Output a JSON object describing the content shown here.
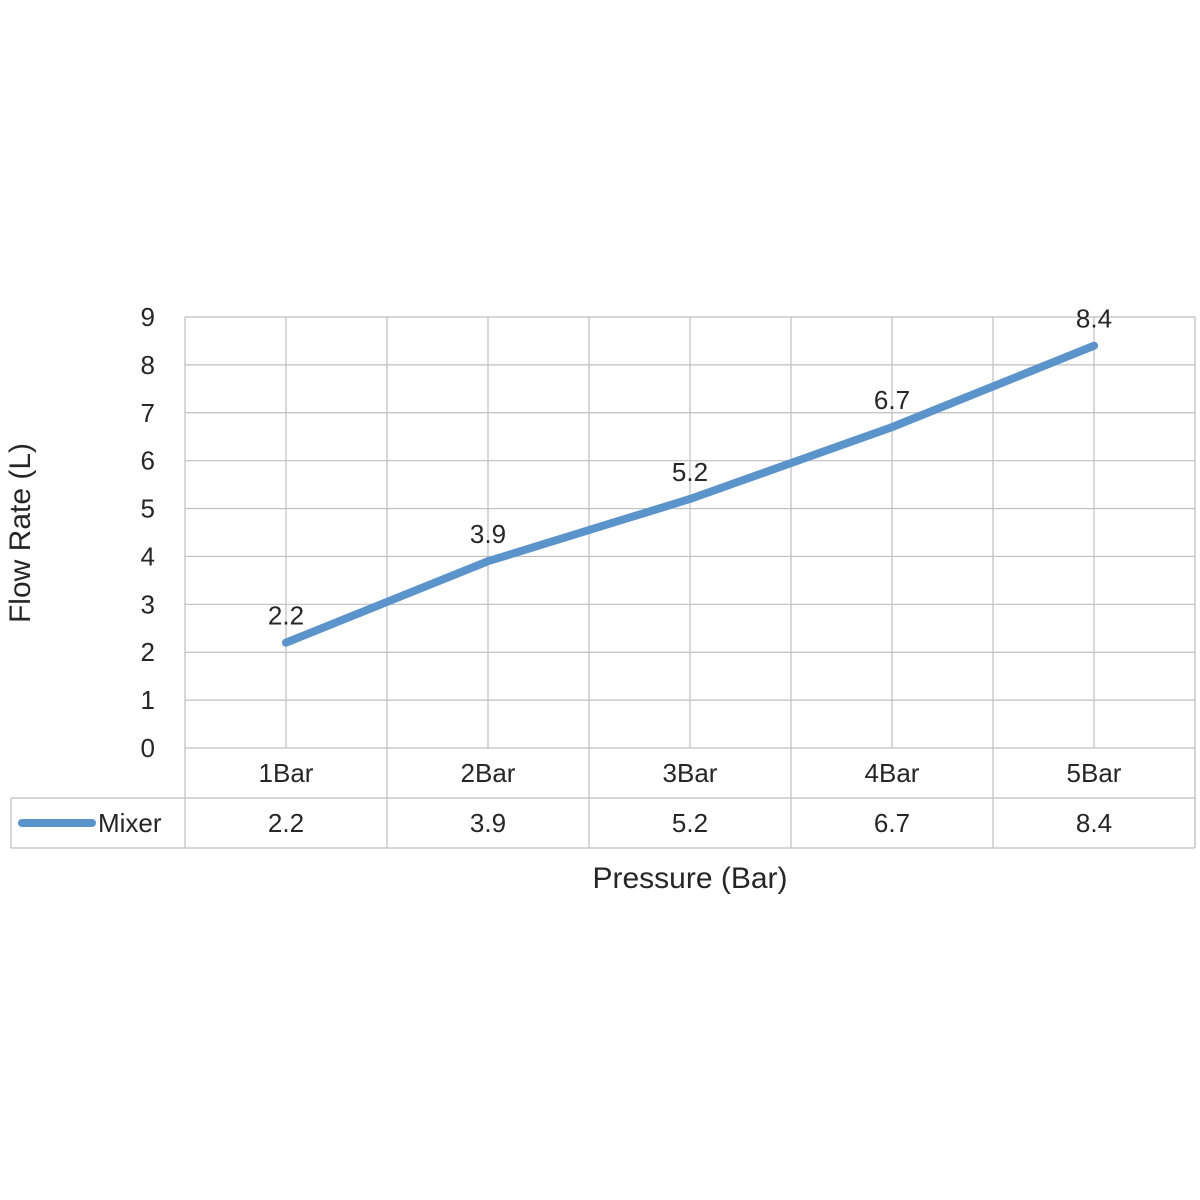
{
  "chart_data": {
    "type": "line",
    "title": "",
    "xlabel": "Pressure (Bar)",
    "ylabel": "Flow Rate (L)",
    "categories": [
      "1Bar",
      "2Bar",
      "3Bar",
      "4Bar",
      "5Bar"
    ],
    "series": [
      {
        "name": "Mixer",
        "values": [
          2.2,
          3.9,
          5.2,
          6.7,
          8.4
        ],
        "color": "#5b93cb"
      }
    ],
    "ylim": [
      0,
      9
    ],
    "yticks": [
      "0",
      "1",
      "2",
      "3",
      "4",
      "5",
      "6",
      "7",
      "8",
      "9"
    ],
    "data_labels": [
      "2.2",
      "3.9",
      "5.2",
      "6.7",
      "8.4"
    ],
    "table_values": [
      "2.2",
      "3.9",
      "5.2",
      "6.7",
      "8.4"
    ],
    "grid": true,
    "legend": "data-table"
  }
}
